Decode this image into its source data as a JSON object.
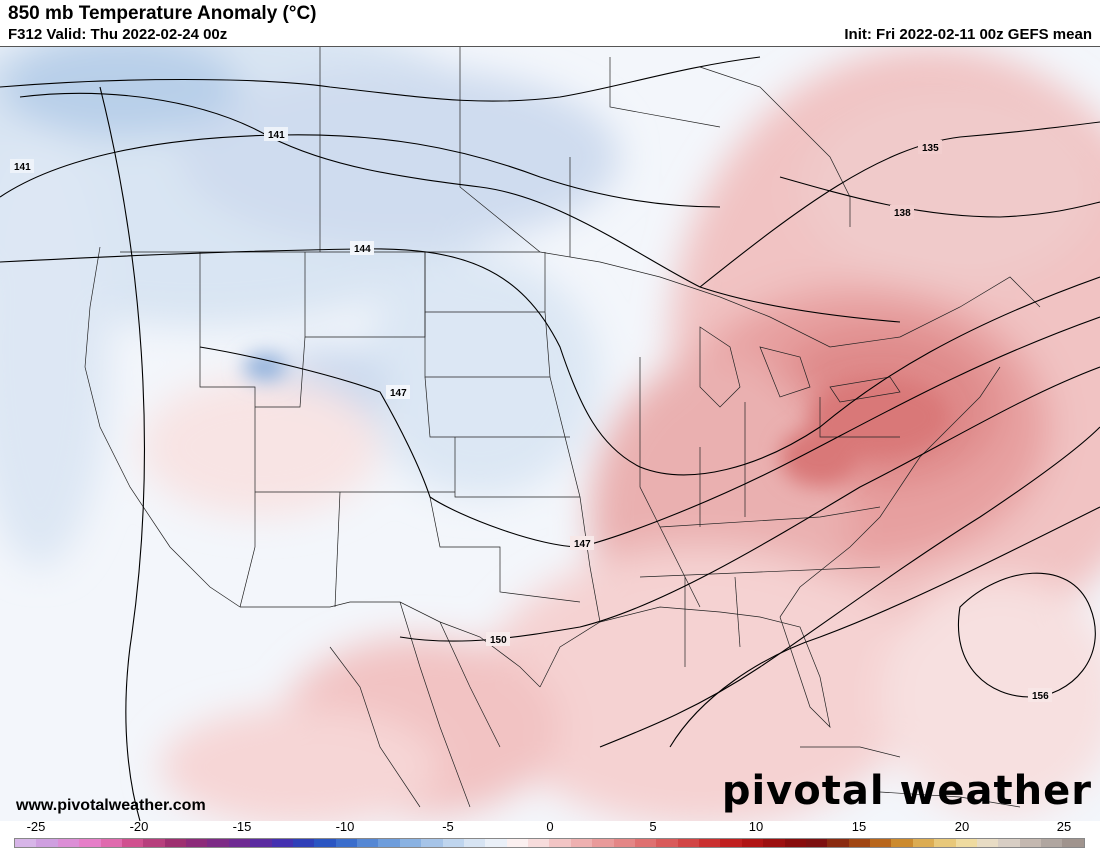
{
  "header": {
    "title": "850 mb Temperature Anomaly (°C)",
    "valid": "F312 Valid: Thu 2022-02-24 00z",
    "init": "Init: Fri 2022-02-11 00z GEFS mean"
  },
  "footer": {
    "website": "www.pivotalweather.com",
    "brand": "pivotal weather"
  },
  "contours": {
    "labels": [
      "141",
      "141",
      "144",
      "147",
      "147",
      "150",
      "135",
      "138",
      "156"
    ]
  },
  "colorbar": {
    "ticks": [
      "-25",
      "-20",
      "-15",
      "-10",
      "-5",
      "0",
      "5",
      "10",
      "15",
      "20",
      "25"
    ],
    "colors": [
      "#d7b5e8",
      "#cf9fe0",
      "#dc8ed6",
      "#e67ec8",
      "#e06aae",
      "#d0508f",
      "#b73f7d",
      "#9e2f70",
      "#8d2a7a",
      "#7d2a86",
      "#6f2a93",
      "#5b2ba0",
      "#4430b0",
      "#2f3fb8",
      "#2a55c2",
      "#3a6dcc",
      "#5587d4",
      "#6e9ddc",
      "#8ab2e2",
      "#a6c4e8",
      "#bfd5ee",
      "#d7e4f3",
      "#eaf0f8",
      "#fbf0f0",
      "#f7dcdc",
      "#f2c5c5",
      "#eeb0b0",
      "#e99a9a",
      "#e48686",
      "#df7070",
      "#d95a5a",
      "#d24545",
      "#ca3030",
      "#c01f1f",
      "#b01414",
      "#9c0f0f",
      "#880c0c",
      "#7d1010",
      "#8a2a10",
      "#a04512",
      "#b8661c",
      "#cc8a2e",
      "#dcac52",
      "#e8c87a",
      "#efdba0",
      "#e8dcc4",
      "#d8cec4",
      "#c4b8b0",
      "#b0a6a0",
      "#a0948e"
    ]
  }
}
